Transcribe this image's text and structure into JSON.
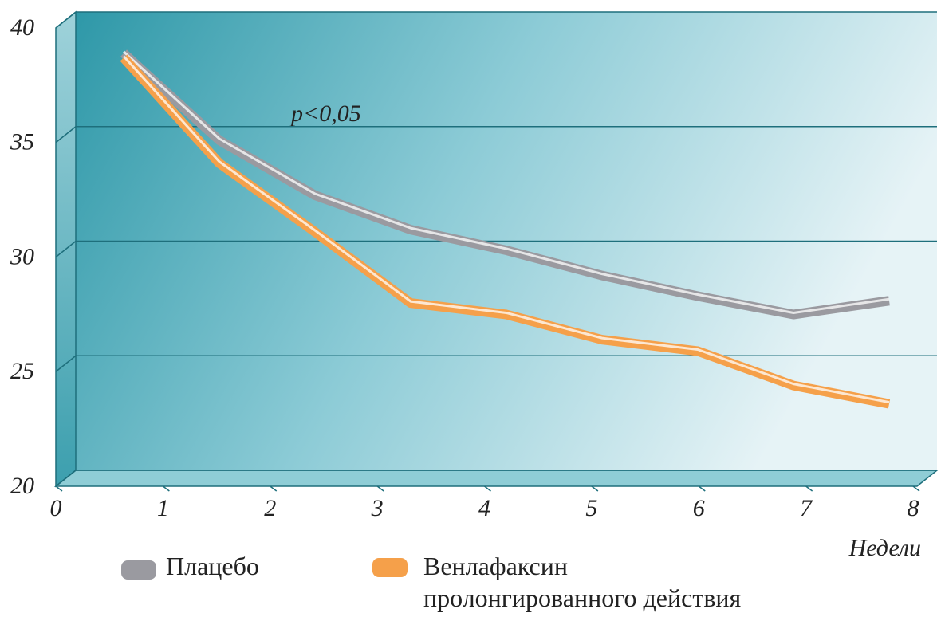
{
  "chart_data": {
    "type": "line",
    "annotation": "p<0,05",
    "x_label": "Недели",
    "x": [
      0,
      1,
      2,
      3,
      4,
      5,
      6,
      7,
      8
    ],
    "xlim": [
      0,
      8
    ],
    "xticks": [
      0,
      1,
      2,
      3,
      4,
      5,
      6,
      7,
      8
    ],
    "ylim": [
      20,
      40
    ],
    "yticks": [
      20,
      25,
      30,
      35,
      40
    ],
    "grid": true,
    "series": [
      {
        "name": "Плацебо",
        "color": "#9a9aa0",
        "values": [
          38.2,
          34.4,
          32.0,
          30.5,
          29.6,
          28.5,
          27.6,
          26.8,
          27.4
        ]
      },
      {
        "name": "Венлафаксин пролонгированного действия",
        "color": "#f5a04a",
        "values": [
          38.0,
          33.4,
          30.4,
          27.3,
          26.8,
          25.7,
          25.2,
          23.7,
          22.9
        ]
      }
    ]
  }
}
